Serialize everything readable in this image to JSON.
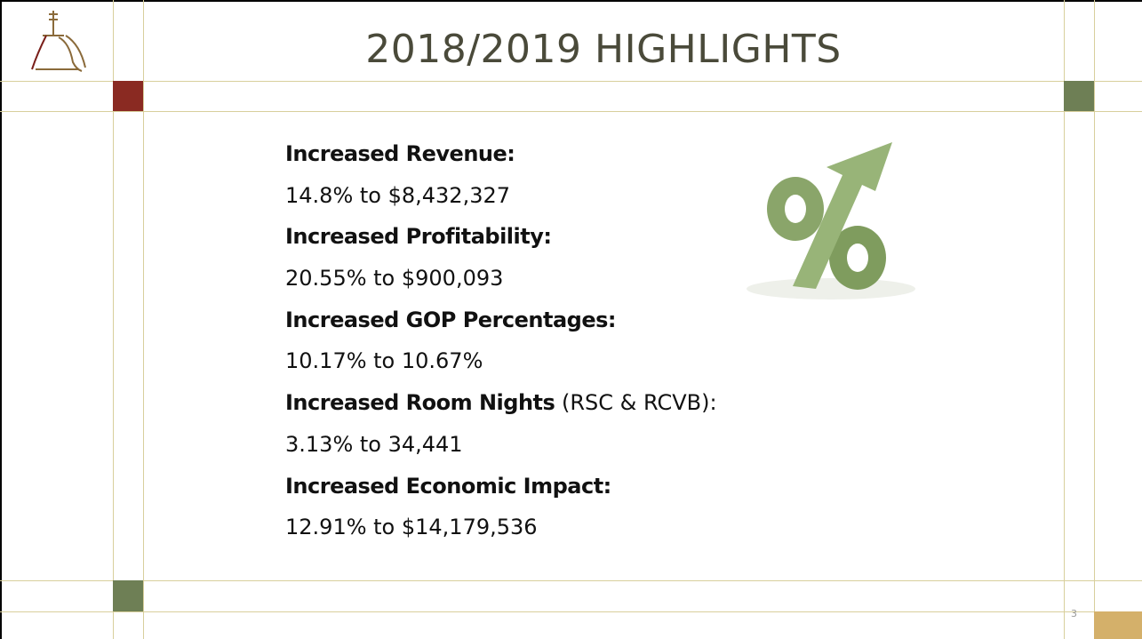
{
  "title": "2018/2019 HIGHLIGHTS",
  "items": [
    {
      "heading": "Increased Revenue:",
      "detail": "14.8% to $8,432,327"
    },
    {
      "heading": "Increased Profitability:",
      "detail": "20.55% to $900,093"
    },
    {
      "heading": "Increased GOP Percentages:",
      "detail": "10.17% to 10.67%"
    },
    {
      "heading": "Increased Room Nights",
      "note": "(RSC & RCVB):",
      "detail": "3.13% to 34,441"
    },
    {
      "heading": "Increased Economic Impact:",
      "detail": "12.91% to $14,179,536"
    }
  ],
  "page_number": "3"
}
